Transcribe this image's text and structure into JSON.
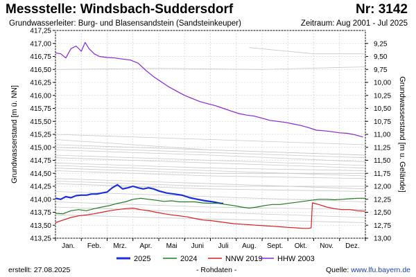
{
  "header": {
    "title": "Messstelle: Windsbach-Suddersdorf",
    "station_number": "Nr: 3142",
    "aquifer": "Grundwasserleiter:   Burg- und Blasensandstein (Sandsteinkeuper)",
    "period": "Zeitraum: Aug 2001 - Jul 2025"
  },
  "footer": {
    "created": "erstellt:  27.08.2025",
    "raw_data_note": "- Rohdaten -",
    "source_label": "Quelle: ",
    "source_url": "www.lfu.bayern.de"
  },
  "chart_data": {
    "type": "line",
    "ylabel": "Grundwasserstand [m ü. NN]",
    "ylabel_right": "Grundwasserstand [m u. Gelände]",
    "ylim": [
      413.25,
      417.25
    ],
    "yticks": [
      "417,25",
      "417,00",
      "416,75",
      "416,50",
      "416,25",
      "416,00",
      "415,75",
      "415,50",
      "415,25",
      "415,00",
      "414,75",
      "414,50",
      "414,25",
      "414,00",
      "413,75",
      "413,50",
      "413,25"
    ],
    "yticks_right": [
      "9,25",
      "9,50",
      "9,75",
      "10,00",
      "10,25",
      "10,50",
      "10,75",
      "11,00",
      "11,25",
      "11,50",
      "11,75",
      "12,00",
      "12,25",
      "12,50",
      "12,75",
      "13,00"
    ],
    "x_months": [
      "Jan.",
      "Feb.",
      "Mrz.",
      "Apr.",
      "Mai",
      "Juni",
      "Juli",
      "Aug.",
      "Sept.",
      "Okt.",
      "Nov.",
      "Dez."
    ],
    "grid": true,
    "legend_position": "bottom",
    "colors": {
      "s2025": "#1a2ee0",
      "s2024": "#1e7a1e",
      "nnw2019": "#e01b1b",
      "hhw2003": "#8a22d8",
      "background": "#c7c7c7",
      "grid": "#d6d6d6"
    },
    "series": [
      {
        "name": "2025",
        "color": "#1a2ee0",
        "width": 2.2,
        "points": [
          [
            0.0,
            414.02
          ],
          [
            0.2,
            414.0
          ],
          [
            0.4,
            414.05
          ],
          [
            0.6,
            414.03
          ],
          [
            0.8,
            414.07
          ],
          [
            1.0,
            414.08
          ],
          [
            1.2,
            414.08
          ],
          [
            1.4,
            414.1
          ],
          [
            1.6,
            414.1
          ],
          [
            1.8,
            414.12
          ],
          [
            2.0,
            414.14
          ],
          [
            2.2,
            414.22
          ],
          [
            2.4,
            414.28
          ],
          [
            2.6,
            414.2
          ],
          [
            2.8,
            414.22
          ],
          [
            3.0,
            414.25
          ],
          [
            3.2,
            414.22
          ],
          [
            3.4,
            414.2
          ],
          [
            3.6,
            414.22
          ],
          [
            3.8,
            414.2
          ],
          [
            4.0,
            414.16
          ],
          [
            4.3,
            414.12
          ],
          [
            4.6,
            414.1
          ],
          [
            4.9,
            414.08
          ],
          [
            5.2,
            414.03
          ],
          [
            5.5,
            414.0
          ],
          [
            5.8,
            413.97
          ],
          [
            6.1,
            413.95
          ],
          [
            6.4,
            413.92
          ],
          [
            6.5,
            413.92
          ]
        ]
      },
      {
        "name": "2024",
        "color": "#1e7a1e",
        "width": 1.2,
        "points": [
          [
            0.0,
            413.73
          ],
          [
            0.3,
            413.72
          ],
          [
            0.6,
            413.78
          ],
          [
            0.9,
            413.8
          ],
          [
            1.2,
            413.78
          ],
          [
            1.5,
            413.82
          ],
          [
            1.8,
            413.85
          ],
          [
            2.1,
            413.88
          ],
          [
            2.4,
            413.92
          ],
          [
            2.7,
            413.95
          ],
          [
            3.0,
            414.0
          ],
          [
            3.3,
            414.02
          ],
          [
            3.6,
            414.0
          ],
          [
            3.9,
            413.98
          ],
          [
            4.2,
            413.96
          ],
          [
            4.5,
            413.97
          ],
          [
            4.8,
            413.95
          ],
          [
            5.1,
            413.95
          ],
          [
            5.4,
            413.95
          ],
          [
            5.7,
            413.93
          ],
          [
            6.0,
            413.92
          ],
          [
            6.3,
            413.92
          ],
          [
            6.6,
            413.9
          ],
          [
            6.9,
            413.88
          ],
          [
            7.2,
            413.85
          ],
          [
            7.5,
            413.83
          ],
          [
            7.8,
            413.85
          ],
          [
            8.1,
            413.88
          ],
          [
            8.4,
            413.9
          ],
          [
            8.7,
            413.9
          ],
          [
            9.0,
            413.92
          ],
          [
            9.3,
            413.94
          ],
          [
            9.6,
            413.96
          ],
          [
            9.9,
            413.98
          ],
          [
            10.2,
            414.0
          ],
          [
            10.5,
            414.0
          ],
          [
            10.8,
            413.99
          ],
          [
            11.1,
            414.0
          ],
          [
            11.4,
            414.01
          ],
          [
            11.7,
            414.02
          ],
          [
            11.98,
            414.02
          ]
        ]
      },
      {
        "name": "NNW 2019",
        "color": "#e01b1b",
        "width": 1.2,
        "points": [
          [
            0.0,
            413.55
          ],
          [
            0.3,
            413.6
          ],
          [
            0.6,
            413.65
          ],
          [
            0.9,
            413.68
          ],
          [
            1.2,
            413.7
          ],
          [
            1.5,
            413.72
          ],
          [
            1.8,
            413.75
          ],
          [
            2.1,
            413.78
          ],
          [
            2.4,
            413.8
          ],
          [
            2.7,
            413.82
          ],
          [
            3.0,
            413.83
          ],
          [
            3.3,
            413.8
          ],
          [
            3.6,
            413.78
          ],
          [
            3.9,
            413.75
          ],
          [
            4.2,
            413.72
          ],
          [
            4.5,
            413.7
          ],
          [
            4.8,
            413.68
          ],
          [
            5.1,
            413.66
          ],
          [
            5.4,
            413.63
          ],
          [
            5.7,
            413.6
          ],
          [
            6.0,
            413.59
          ],
          [
            6.3,
            413.57
          ],
          [
            6.6,
            413.55
          ],
          [
            6.9,
            413.53
          ],
          [
            7.2,
            413.52
          ],
          [
            7.5,
            413.51
          ],
          [
            7.8,
            413.5
          ],
          [
            8.1,
            413.49
          ],
          [
            8.4,
            413.48
          ],
          [
            8.7,
            413.47
          ],
          [
            9.0,
            413.46
          ],
          [
            9.3,
            413.45
          ],
          [
            9.6,
            413.44
          ],
          [
            9.8,
            413.44
          ],
          [
            9.9,
            413.45
          ],
          [
            9.95,
            413.93
          ],
          [
            10.2,
            413.9
          ],
          [
            10.5,
            413.85
          ],
          [
            10.8,
            413.82
          ],
          [
            11.1,
            413.8
          ],
          [
            11.4,
            413.8
          ],
          [
            11.7,
            413.78
          ],
          [
            11.98,
            413.77
          ]
        ]
      },
      {
        "name": "HHW 2003",
        "color": "#8a22d8",
        "width": 1.2,
        "points": [
          [
            0.0,
            416.82
          ],
          [
            0.2,
            416.8
          ],
          [
            0.4,
            416.72
          ],
          [
            0.6,
            416.9
          ],
          [
            0.8,
            416.95
          ],
          [
            1.0,
            416.85
          ],
          [
            1.15,
            417.02
          ],
          [
            1.3,
            416.9
          ],
          [
            1.5,
            416.8
          ],
          [
            1.7,
            416.75
          ],
          [
            2.0,
            416.73
          ],
          [
            2.3,
            416.72
          ],
          [
            2.6,
            416.7
          ],
          [
            2.9,
            416.68
          ],
          [
            3.2,
            416.62
          ],
          [
            3.5,
            416.48
          ],
          [
            3.8,
            416.36
          ],
          [
            4.1,
            416.26
          ],
          [
            4.4,
            416.16
          ],
          [
            4.7,
            416.08
          ],
          [
            5.0,
            416.0
          ],
          [
            5.3,
            415.94
          ],
          [
            5.6,
            415.88
          ],
          [
            5.9,
            415.84
          ],
          [
            6.2,
            415.8
          ],
          [
            6.5,
            415.75
          ],
          [
            6.8,
            415.7
          ],
          [
            7.1,
            415.65
          ],
          [
            7.4,
            415.62
          ],
          [
            7.7,
            415.6
          ],
          [
            8.0,
            415.56
          ],
          [
            8.3,
            415.52
          ],
          [
            8.6,
            415.5
          ],
          [
            8.9,
            415.48
          ],
          [
            9.2,
            415.45
          ],
          [
            9.5,
            415.42
          ],
          [
            9.8,
            415.38
          ],
          [
            10.1,
            415.33
          ],
          [
            10.4,
            415.32
          ],
          [
            10.7,
            415.3
          ],
          [
            11.0,
            415.28
          ],
          [
            11.3,
            415.27
          ],
          [
            11.6,
            415.24
          ],
          [
            11.9,
            415.2
          ]
        ]
      }
    ],
    "background_years": [
      [
        [
          0,
          413.7
        ],
        [
          6,
          413.62
        ],
        [
          12,
          413.55
        ]
      ],
      [
        [
          0,
          414.65
        ],
        [
          6,
          414.55
        ],
        [
          12,
          414.45
        ]
      ],
      [
        [
          0,
          414.85
        ],
        [
          6,
          414.75
        ],
        [
          12,
          414.65
        ]
      ],
      [
        [
          0,
          415.0
        ],
        [
          6,
          414.9
        ],
        [
          12,
          414.8
        ]
      ],
      [
        [
          0,
          414.95
        ],
        [
          6,
          414.85
        ],
        [
          12,
          414.72
        ]
      ],
      [
        [
          0,
          414.8
        ],
        [
          6,
          414.7
        ],
        [
          12,
          414.6
        ]
      ],
      [
        [
          0,
          414.7
        ],
        [
          6,
          414.6
        ],
        [
          12,
          414.55
        ]
      ],
      [
        [
          0,
          414.4
        ],
        [
          6,
          414.3
        ],
        [
          12,
          414.2
        ]
      ],
      [
        [
          0,
          414.3
        ],
        [
          6,
          414.2
        ],
        [
          12,
          414.15
        ]
      ],
      [
        [
          0,
          414.15
        ],
        [
          6,
          414.05
        ],
        [
          12,
          413.95
        ]
      ],
      [
        [
          0,
          414.55
        ],
        [
          6,
          414.45
        ],
        [
          12,
          414.4
        ]
      ],
      [
        [
          0,
          415.15
        ],
        [
          6,
          414.95
        ],
        [
          12,
          414.85
        ]
      ],
      [
        [
          0,
          415.25
        ],
        [
          6,
          415.15
        ],
        [
          12,
          415.05
        ]
      ],
      [
        [
          0,
          413.95
        ],
        [
          6,
          413.85
        ],
        [
          12,
          413.8
        ]
      ],
      [
        [
          0,
          413.85
        ],
        [
          6,
          413.75
        ],
        [
          12,
          413.65
        ]
      ],
      [
        [
          0,
          415.05
        ],
        [
          6,
          414.95
        ],
        [
          12,
          414.85
        ]
      ],
      [
        [
          0,
          414.6
        ],
        [
          6,
          414.5
        ],
        [
          12,
          414.5
        ]
      ],
      [
        [
          0,
          414.35
        ],
        [
          6,
          414.25
        ],
        [
          12,
          414.25
        ]
      ],
      [
        [
          0,
          416.5
        ],
        [
          4,
          416.52
        ],
        [
          8,
          416.5
        ],
        [
          12,
          416.55
        ]
      ],
      [
        [
          7.5,
          416.92
        ],
        [
          10,
          416.8
        ],
        [
          12,
          416.8
        ]
      ]
    ]
  }
}
